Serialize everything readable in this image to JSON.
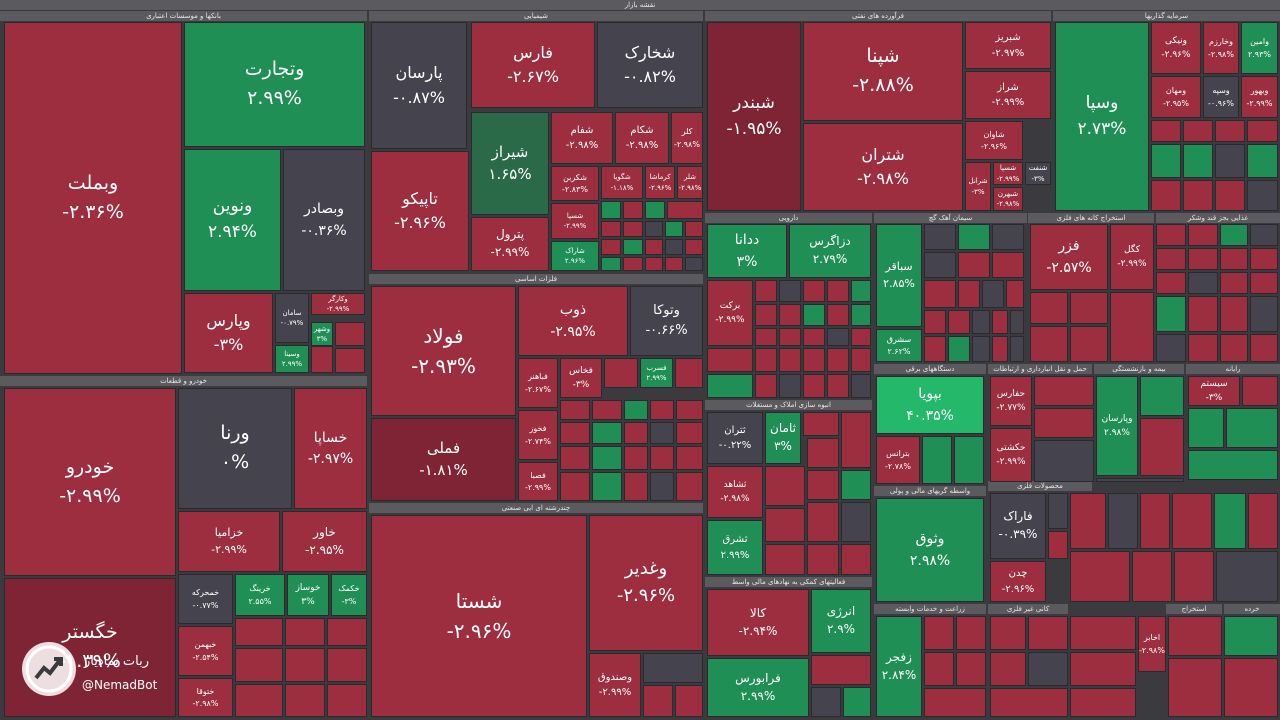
{
  "colors": {
    "red": "#9c2e40",
    "red_dark": "#7e2435",
    "red_light": "#b23a4f",
    "green": "#1f8f55",
    "green_dark": "#2a6a48",
    "green_bright": "#23b86a",
    "neutral": "#45434d",
    "neutral_dark": "#3a3a3f",
    "header": "#5a5a5f"
  },
  "map_title": "نقشه بازار",
  "sectors": [
    "بانکها و موسسات اعتباری",
    "شیمیایی",
    "فرآورده های نفتی",
    "سرمایه گذاریها",
    "خودرو و قطعات",
    "فلزات اساسی",
    "دارویی",
    "سیمان آهک گچ",
    "استخراج کانه های فلزی",
    "غذایی بجز قند وشکر",
    "چندرشته ای ایی صنعتی",
    "انبوه سازی املاک و مستغلات",
    "دستگاههای برقی",
    "حمل و نقل انبارداری و ارتباطات",
    "بیمه و بازنشستگی",
    "رایانه",
    "واسطه گریهای مالی و پولی",
    "محصولات فلزی",
    "فعالیتهای کمکی به نهادهای مالی واسط",
    "زراعت و خدمات وابسته",
    "کانی غیر فلزی",
    "استخراج",
    "خرده"
  ],
  "tiles": [
    {
      "name": "وبملت",
      "pct": "-۲.۳۶%"
    },
    {
      "name": "وتجارت",
      "pct": "۲.۹۹%"
    },
    {
      "name": "ونوین",
      "pct": "۲.۹۴%"
    },
    {
      "name": "وبصادر",
      "pct": "-۰.۳۶%"
    },
    {
      "name": "وپارس",
      "pct": "-۳%"
    },
    {
      "name": "سامان",
      "pct": "-۰.۷۹%"
    },
    {
      "name": "وکارگر",
      "pct": "-۲.۹۹%"
    },
    {
      "name": "وشهر",
      "pct": "۳%"
    },
    {
      "name": "وسینا",
      "pct": "۲.۹۹%"
    },
    {
      "name": "پارسان",
      "pct": "-۰.۸۷%"
    },
    {
      "name": "فارس",
      "pct": "-۲.۶۷%"
    },
    {
      "name": "شخارک",
      "pct": "-۰.۸۲%"
    },
    {
      "name": "شیراز",
      "pct": "۱.۶۵%"
    },
    {
      "name": "شفام",
      "pct": "-۲.۹۸%"
    },
    {
      "name": "شکام",
      "pct": "-۲.۹۸%"
    },
    {
      "name": "کلر",
      "pct": "-۲.۹۸%"
    },
    {
      "name": "تاپیکو",
      "pct": "-۲.۹۶%"
    },
    {
      "name": "شکربن",
      "pct": "-۲.۸۳%"
    },
    {
      "name": "شگویا",
      "pct": "-۱.۱۸%"
    },
    {
      "name": "کرماشا",
      "pct": "-۲.۹۶%"
    },
    {
      "name": "شلر",
      "pct": "-۲.۹۸%"
    },
    {
      "name": "پترول",
      "pct": "-۲.۹۹%"
    },
    {
      "name": "شسپا",
      "pct": "-۲.۹۹%"
    },
    {
      "name": "شاراک",
      "pct": "۲.۹۶%"
    },
    {
      "name": "شبندر",
      "pct": "-۱.۹۵%"
    },
    {
      "name": "شپنا",
      "pct": "-۲.۸۸%"
    },
    {
      "name": "شبریز",
      "pct": "-۲.۹۷%"
    },
    {
      "name": "شراز",
      "pct": "-۲.۹۹%"
    },
    {
      "name": "شتران",
      "pct": "-۲.۹۸%"
    },
    {
      "name": "شاوان",
      "pct": "-۲.۹۶%"
    },
    {
      "name": "شسپا",
      "pct": "-۲.۹۹%"
    },
    {
      "name": "شنفت",
      "pct": "-۳%"
    },
    {
      "name": "شبهرن",
      "pct": "-۲.۹۸%"
    },
    {
      "name": "شرانل",
      "pct": "-۳%"
    },
    {
      "name": "وسپا",
      "pct": "۲.۷۳%"
    },
    {
      "name": "ونیکی",
      "pct": "-۲.۹۶%"
    },
    {
      "name": "وخارزم",
      "pct": "-۲.۹۸%"
    },
    {
      "name": "وامین",
      "pct": "۲.۹۳%"
    },
    {
      "name": "ومهان",
      "pct": "-۲.۹۵%"
    },
    {
      "name": "وسپه",
      "pct": "-۰.۹۶%"
    },
    {
      "name": "وبهور",
      "pct": "-۲.۹۹%"
    },
    {
      "name": "خودرو",
      "pct": "-۲.۹۹%"
    },
    {
      "name": "ورنا",
      "pct": "۰%"
    },
    {
      "name": "خساپا",
      "pct": "-۲.۹۷%"
    },
    {
      "name": "خزامیا",
      "pct": "-۲.۹۹%"
    },
    {
      "name": "خاور",
      "pct": "-۲.۹۵%"
    },
    {
      "name": "خگستر",
      "pct": "-۱.۳۹%"
    },
    {
      "name": "خمحرکه",
      "pct": "-۰.۷۷%"
    },
    {
      "name": "خرینگ",
      "pct": "۲.۵۵%"
    },
    {
      "name": "خوساز",
      "pct": "۳%"
    },
    {
      "name": "خکمک",
      "pct": "-۳%"
    },
    {
      "name": "خبهمن",
      "pct": "-۲.۵۴%"
    },
    {
      "name": "ختوقا",
      "pct": "-۲.۹۸%"
    },
    {
      "name": "فولاد",
      "pct": "-۲.۹۳%"
    },
    {
      "name": "ذوب",
      "pct": "-۲.۹۵%"
    },
    {
      "name": "وتوکا",
      "pct": "-۰.۶۶%"
    },
    {
      "name": "فملی",
      "pct": "-۱.۸۱%"
    },
    {
      "name": "فخاس",
      "pct": "-۳%"
    },
    {
      "name": "فسرب",
      "pct": "۲.۹۹%"
    },
    {
      "name": "فباهنر",
      "pct": "-۲.۶۷%"
    },
    {
      "name": "فخوز",
      "pct": "-۲.۷۴%"
    },
    {
      "name": "فصبا",
      "pct": "-۲.۹۹%"
    },
    {
      "name": "شستا",
      "pct": "-۲.۹۶%"
    },
    {
      "name": "وغدیر",
      "pct": "-۲.۹۶%"
    },
    {
      "name": "وصندوق",
      "pct": "-۲.۹۹%"
    },
    {
      "name": "ددانا",
      "pct": "۳%"
    },
    {
      "name": "دزاگرس",
      "pct": "۲.۷۹%"
    },
    {
      "name": "برکت",
      "pct": "-۲.۹۹%"
    },
    {
      "name": "ثتران",
      "pct": "-۰.۲۲%"
    },
    {
      "name": "ثامان",
      "pct": "۳%"
    },
    {
      "name": "ثشاهد",
      "pct": "-۲.۹۸%"
    },
    {
      "name": "ثشرق",
      "pct": "۲.۹۹%"
    },
    {
      "name": "کالا",
      "pct": "-۲.۹۴%"
    },
    {
      "name": "انرژی",
      "pct": "۲.۹%"
    },
    {
      "name": "فرابورس",
      "pct": "۲.۹۹%"
    },
    {
      "name": "سباقر",
      "pct": "۲.۸۵%"
    },
    {
      "name": "سشرق",
      "pct": "۲.۶۲%"
    },
    {
      "name": "بپویا",
      "pct": "۴۰.۳۵%"
    },
    {
      "name": "بترانس",
      "pct": "-۲.۷۸%"
    },
    {
      "name": "وثوق",
      "pct": "۲.۹۸%"
    },
    {
      "name": "زفجر",
      "pct": "۲.۸۴%"
    },
    {
      "name": "فزر",
      "pct": "-۲.۵۷%"
    },
    {
      "name": "کگل",
      "pct": "-۲.۹۹%"
    },
    {
      "name": "حفارس",
      "pct": "-۲.۷۷%"
    },
    {
      "name": "حکشتی",
      "pct": "-۲.۹۹%"
    },
    {
      "name": "وپارسان",
      "pct": "۲.۹۸%"
    },
    {
      "name": "سیستم",
      "pct": "-۳%"
    },
    {
      "name": "فاراک",
      "pct": "-۰.۳۹%"
    },
    {
      "name": "چدن",
      "pct": "-۲.۹۶%"
    },
    {
      "name": "اخابر",
      "pct": "-۲.۹۸%"
    }
  ],
  "watermark": {
    "line1": "ربات نمادیار",
    "line2": "@NemadBot"
  }
}
